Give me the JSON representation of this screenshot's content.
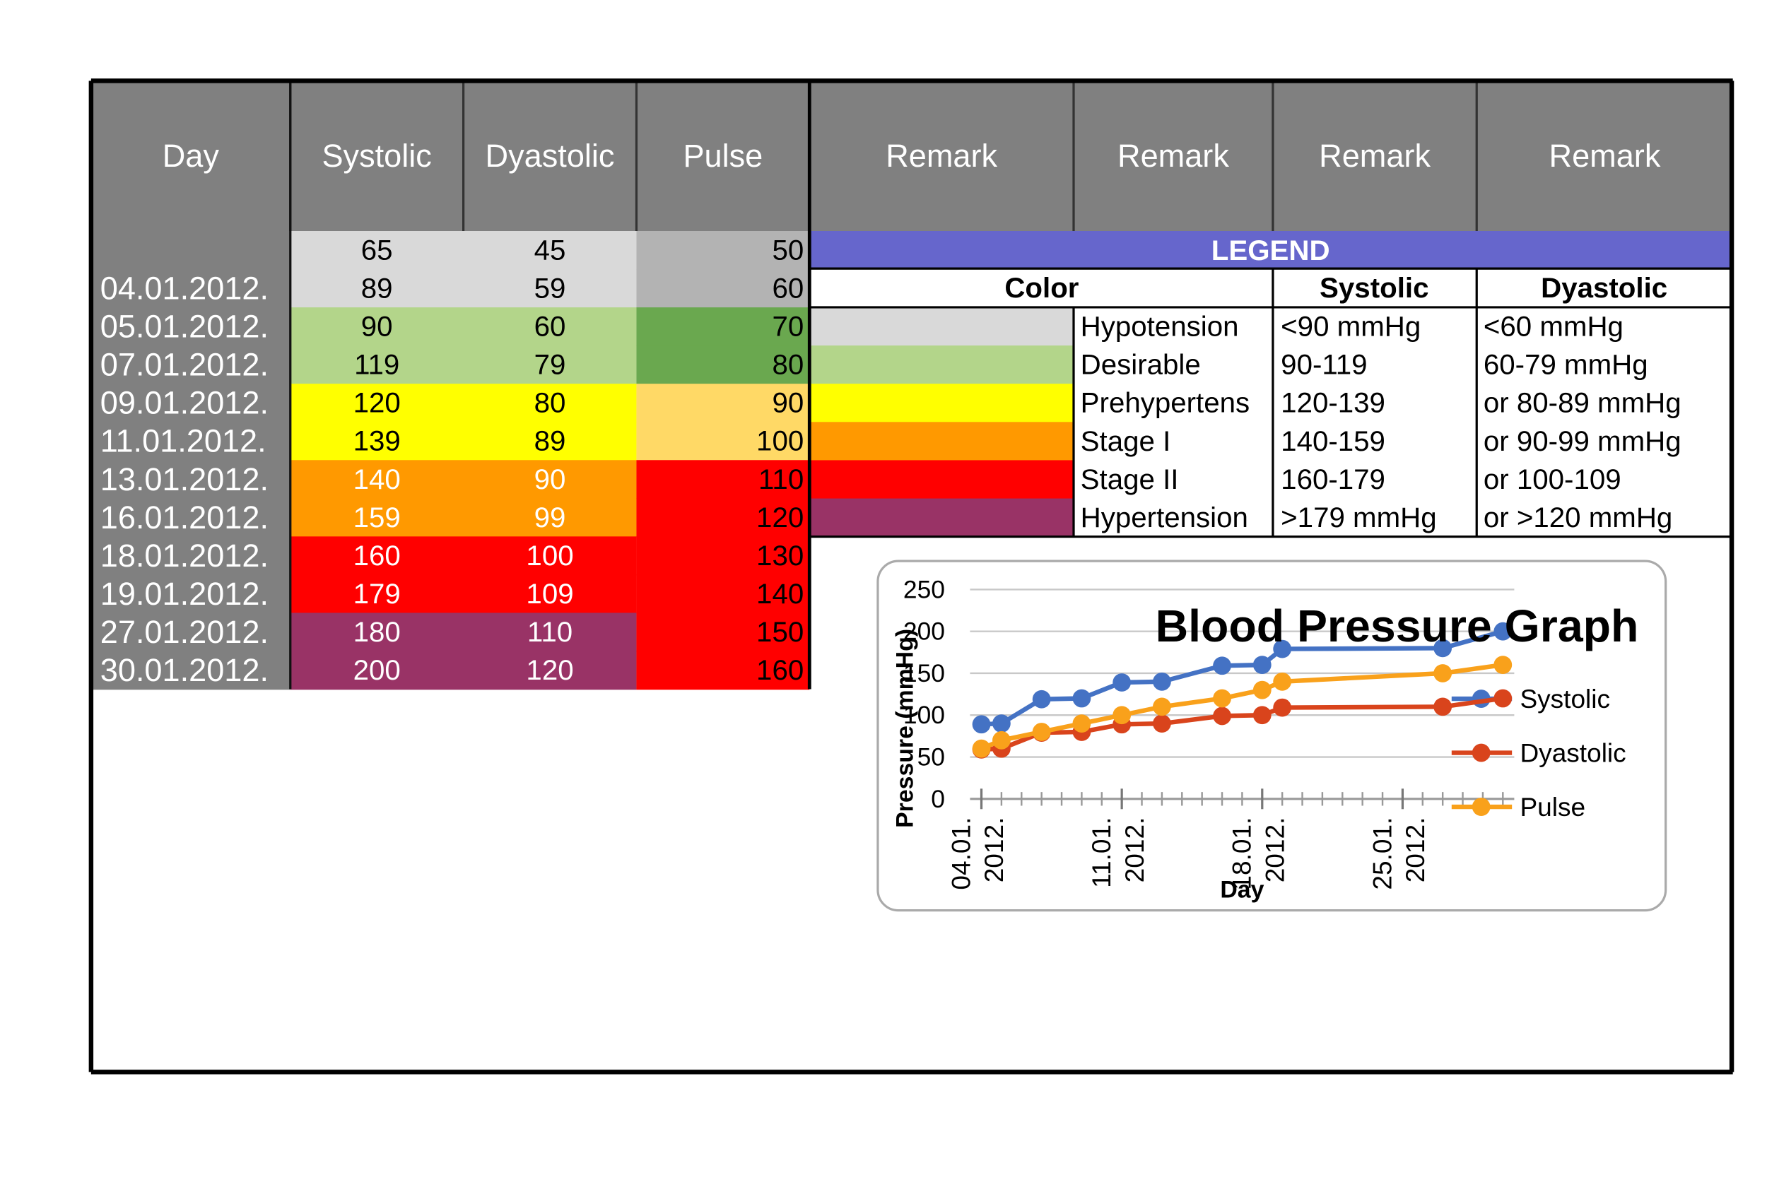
{
  "table": {
    "header": [
      "Day",
      "Systolic",
      "Dyastolic",
      "Pulse",
      "Remark",
      "Remark",
      "Remark",
      "Remark"
    ],
    "rows": [
      {
        "systolic": 65,
        "dyastolic": 45,
        "pulse": 50,
        "color": "#d9d9d9",
        "pulse_color": "#b3b3b3",
        "text_color": "#000000"
      },
      {
        "day": "04.01.2012.",
        "systolic": 89,
        "dyastolic": 59,
        "pulse": 60,
        "color": "#d9d9d9",
        "pulse_color": "#b3b3b3",
        "text_color": "#000000"
      },
      {
        "day": "05.01.2012.",
        "systolic": 90,
        "dyastolic": 60,
        "pulse": 70,
        "color": "#b3d58a",
        "pulse_color": "#6aa84f",
        "text_color": "#000000"
      },
      {
        "day": "07.01.2012.",
        "systolic": 119,
        "dyastolic": 79,
        "pulse": 80,
        "color": "#b3d58a",
        "pulse_color": "#6aa84f",
        "text_color": "#000000"
      },
      {
        "day": "09.01.2012.",
        "systolic": 120,
        "dyastolic": 80,
        "pulse": 90,
        "color": "#ffff00",
        "pulse_color": "#ffd966",
        "text_color": "#000000"
      },
      {
        "day": "11.01.2012.",
        "systolic": 139,
        "dyastolic": 89,
        "pulse": 100,
        "color": "#ffff00",
        "pulse_color": "#ffd966",
        "text_color": "#000000"
      },
      {
        "day": "13.01.2012.",
        "systolic": 140,
        "dyastolic": 90,
        "pulse": 110,
        "color": "#ff9900",
        "pulse_color": "#ff0000",
        "text_color": "#ffffff"
      },
      {
        "day": "16.01.2012.",
        "systolic": 159,
        "dyastolic": 99,
        "pulse": 120,
        "color": "#ff9900",
        "pulse_color": "#ff0000",
        "text_color": "#ffffff"
      },
      {
        "day": "18.01.2012.",
        "systolic": 160,
        "dyastolic": 100,
        "pulse": 130,
        "color": "#ff0000",
        "pulse_color": "#ff0000",
        "text_color": "#ffffff"
      },
      {
        "day": "19.01.2012.",
        "systolic": 179,
        "dyastolic": 109,
        "pulse": 140,
        "color": "#ff0000",
        "pulse_color": "#ff0000",
        "text_color": "#ffffff"
      },
      {
        "day": "27.01.2012.",
        "systolic": 180,
        "dyastolic": 110,
        "pulse": 150,
        "color": "#993366",
        "pulse_color": "#ff0000",
        "text_color": "#ffffff"
      },
      {
        "day": "30.01.2012.",
        "systolic": 200,
        "dyastolic": 120,
        "pulse": 160,
        "color": "#993366",
        "pulse_color": "#ff0000",
        "text_color": "#ffffff"
      }
    ]
  },
  "legend": {
    "title": "LEGEND",
    "header": [
      "Color",
      "Systolic",
      "Dyastolic"
    ],
    "rows": [
      {
        "color": "#d9d9d9",
        "label": "Hypotension",
        "systolic": "<90 mmHg",
        "dyastolic": "<60 mmHg"
      },
      {
        "color": "#b3d58a",
        "label": "Desirable",
        "systolic": "90-119",
        "dyastolic": "60-79 mmHg"
      },
      {
        "color": "#ffff00",
        "label": "Prehypertens",
        "systolic": "120-139",
        "dyastolic": "or 80-89 mmHg"
      },
      {
        "color": "#ff9900",
        "label": "Stage I",
        "systolic": "140-159",
        "dyastolic": "or 90-99 mmHg"
      },
      {
        "color": "#ff0000",
        "label": "Stage II",
        "systolic": "160-179",
        "dyastolic": "or 100-109"
      },
      {
        "color": "#993366",
        "label": "Hypertension",
        "systolic": ">179 mmHg",
        "dyastolic": "or >120 mmHg"
      }
    ]
  },
  "chart_data": {
    "type": "line",
    "title": "Blood Pressure Graph",
    "x_label": "Day",
    "y_label": "Pressure (mmHg)",
    "x": [
      "2012-01-04",
      "2012-01-05",
      "2012-01-07",
      "2012-01-09",
      "2012-01-11",
      "2012-01-13",
      "2012-01-16",
      "2012-01-18",
      "2012-01-19",
      "2012-01-27",
      "2012-01-30"
    ],
    "xlim": [
      "2012-01-04",
      "2012-01-30"
    ],
    "xticks": [
      {
        "value": "2012-01-04",
        "label": "04.01. 2012."
      },
      {
        "value": "2012-01-11",
        "label": "11.01. 2012."
      },
      {
        "value": "2012-01-18",
        "label": "18.01. 2012."
      },
      {
        "value": "2012-01-25",
        "label": "25.01. 2012."
      }
    ],
    "ylim": [
      0,
      250
    ],
    "yticks": [
      0,
      50,
      100,
      150,
      200,
      250
    ],
    "grid": true,
    "series": [
      {
        "name": "Systolic",
        "color": "#4472c4",
        "values": [
          89,
          90,
          119,
          120,
          139,
          140,
          159,
          160,
          179,
          180,
          200
        ]
      },
      {
        "name": "Dyastolic",
        "color": "#d9441c",
        "values": [
          59,
          60,
          79,
          80,
          89,
          90,
          99,
          100,
          109,
          110,
          120
        ]
      },
      {
        "name": "Pulse",
        "color": "#f9a11b",
        "values": [
          60,
          70,
          80,
          90,
          100,
          110,
          120,
          130,
          140,
          150,
          160
        ]
      }
    ]
  }
}
